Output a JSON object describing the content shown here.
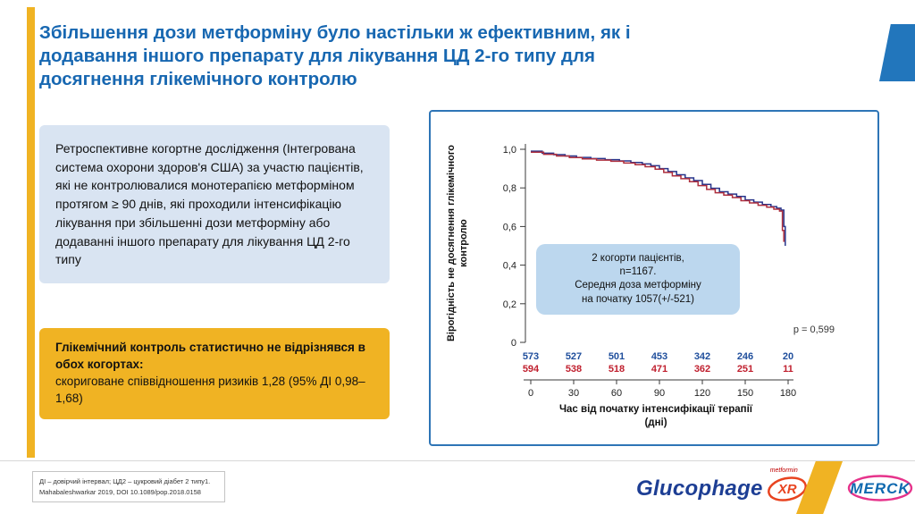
{
  "slide_title": "Збільшення дози метформіну було настільки ж ефективним, як і додавання іншого препарату для лікування ЦД 2-го типу для досягнення глікемічного контролю",
  "study_box_text": "Ретроспективне когортне дослідження (Інтегрована система охорони здоров'я США) за участю пацієнтів, які не контролювалися монотерапією метформіном протягом ≥ 90 днів, які проходили інтенсифікацію лікування при збільшенні дози метформіну або додаванні іншого препарату для лікування ЦД 2-го типу",
  "result_box": {
    "bold": "Глікемічний контроль статистично не відрізнявся в обох когортах:",
    "normal": "скориговане співвідношення ризиків 1,28 (95% ДІ 0,98–1,68)"
  },
  "chart_data": {
    "type": "line",
    "subtype": "kaplan_meier_step",
    "title": "",
    "ylabel": "Вірогідність не досягнення глікемічного контролю",
    "xlabel": "Час від початку інтенсифікації терапії (дні)",
    "xlabel_lines": [
      "Час від початку інтенсифікації терапії",
      "(дні)"
    ],
    "p_value_label": "p = 0,599",
    "annotation_lines": [
      "2 когорти пацієнтів,",
      "n=1167.",
      "Середня доза метформіну",
      "на початку 1057(+/-521)"
    ],
    "xticks": [
      0,
      30,
      60,
      90,
      120,
      150,
      180
    ],
    "ytick_labels": [
      "1,0",
      "0,8",
      "0,6",
      "0,4",
      "0,2",
      "0"
    ],
    "ytick_values": [
      1.0,
      0.8,
      0.6,
      0.4,
      0.2,
      0
    ],
    "xlim": [
      0,
      185
    ],
    "ylim": [
      0,
      1.02
    ],
    "grid": false,
    "legend": "none",
    "series": [
      {
        "name": "cohort_blue",
        "color": "#27348B",
        "points": [
          [
            0,
            0.99
          ],
          [
            8,
            0.98
          ],
          [
            16,
            0.972
          ],
          [
            24,
            0.965
          ],
          [
            32,
            0.958
          ],
          [
            42,
            0.952
          ],
          [
            52,
            0.946
          ],
          [
            62,
            0.94
          ],
          [
            70,
            0.932
          ],
          [
            78,
            0.924
          ],
          [
            84,
            0.915
          ],
          [
            90,
            0.9
          ],
          [
            96,
            0.885
          ],
          [
            102,
            0.868
          ],
          [
            108,
            0.852
          ],
          [
            114,
            0.838
          ],
          [
            120,
            0.818
          ],
          [
            126,
            0.798
          ],
          [
            132,
            0.78
          ],
          [
            138,
            0.768
          ],
          [
            144,
            0.756
          ],
          [
            150,
            0.738
          ],
          [
            156,
            0.726
          ],
          [
            162,
            0.714
          ],
          [
            168,
            0.703
          ],
          [
            172,
            0.695
          ],
          [
            175,
            0.685
          ],
          [
            177,
            0.6
          ],
          [
            178,
            0.5
          ]
        ]
      },
      {
        "name": "cohort_red",
        "color": "#AE2E3D",
        "points": [
          [
            0,
            0.985
          ],
          [
            9,
            0.974
          ],
          [
            18,
            0.965
          ],
          [
            27,
            0.957
          ],
          [
            36,
            0.95
          ],
          [
            46,
            0.944
          ],
          [
            56,
            0.938
          ],
          [
            65,
            0.929
          ],
          [
            73,
            0.92
          ],
          [
            80,
            0.91
          ],
          [
            87,
            0.897
          ],
          [
            93,
            0.88
          ],
          [
            99,
            0.862
          ],
          [
            105,
            0.848
          ],
          [
            111,
            0.832
          ],
          [
            117,
            0.812
          ],
          [
            123,
            0.792
          ],
          [
            129,
            0.775
          ],
          [
            135,
            0.763
          ],
          [
            141,
            0.75
          ],
          [
            147,
            0.734
          ],
          [
            153,
            0.722
          ],
          [
            159,
            0.71
          ],
          [
            165,
            0.7
          ],
          [
            170,
            0.69
          ],
          [
            174,
            0.68
          ],
          [
            176,
            0.58
          ],
          [
            177,
            0.52
          ]
        ]
      }
    ],
    "numbers_at_risk": [
      {
        "series": "cohort_blue",
        "color": "#1F4E9C",
        "values": [
          573,
          527,
          501,
          453,
          342,
          246,
          20
        ]
      },
      {
        "series": "cohort_red",
        "color": "#C0202F",
        "values": [
          594,
          538,
          518,
          471,
          362,
          251,
          11
        ]
      }
    ]
  },
  "footer": {
    "footnote_lines": [
      "ДІ – довірчий інтервал; ЦД2 – цукровий діабет 2 типу1.",
      "Mahabaleshwarkar 2019, DOI 10.1089/pop.2018.0158"
    ],
    "glucophage": {
      "brand": "Glucophage",
      "suffix": "XR",
      "tagline": "metformin"
    },
    "merck_text": "MERCK"
  },
  "colors": {
    "accent_yellow": "#F0B323",
    "title_blue": "#1767B1",
    "corner_blue": "#2276BC",
    "panel_border_blue": "#2E75B6",
    "study_box_bg": "#D9E4F2",
    "callout_bg": "#BCD7EE",
    "curve_blue": "#27348B",
    "curve_red": "#AE2E3D",
    "merck_blue": "#0F69AF",
    "merck_pink": "#E6338B",
    "glucophage_blue": "#1D3E94",
    "glucophage_orange": "#E8431F"
  }
}
